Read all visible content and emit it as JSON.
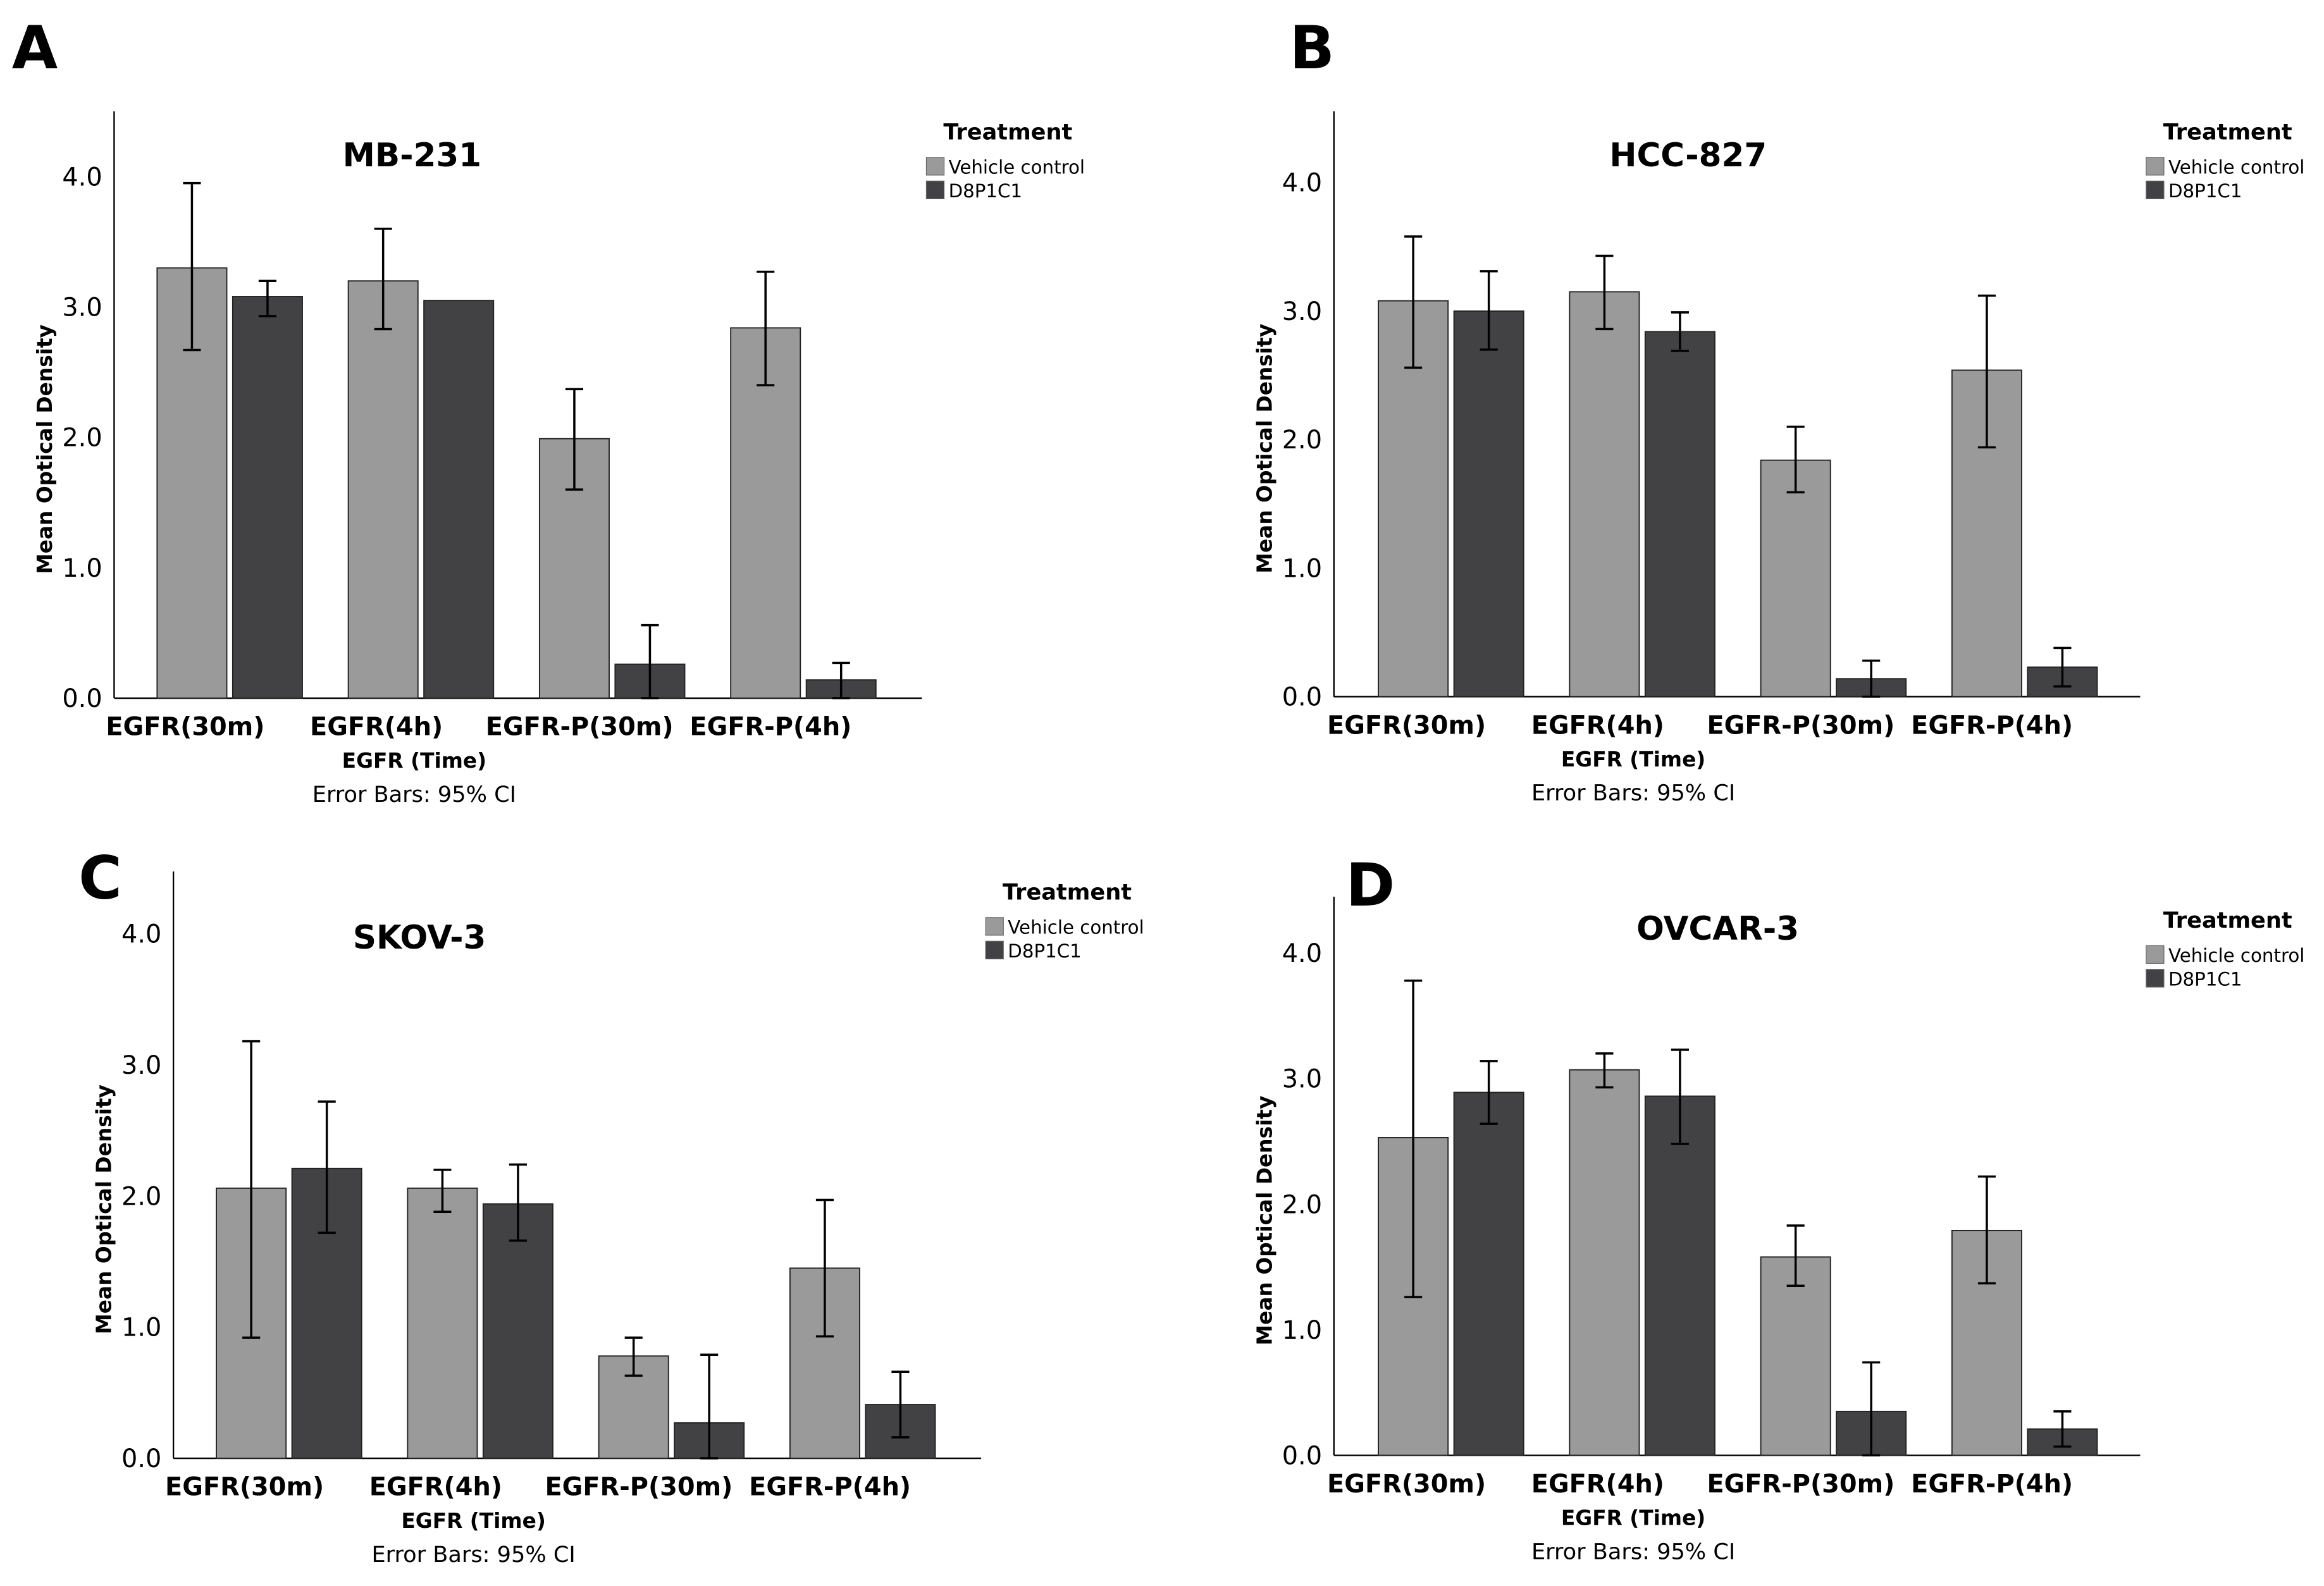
{
  "colors": {
    "vehicle": "#9a9a9a",
    "d8p1c1": "#424244",
    "axis": "#000000"
  },
  "chart_data": [
    {
      "type": "bar",
      "panel": "A",
      "title": "MB-231",
      "xlabel": "EGFR (Time)",
      "ylabel": "Mean Optical Density",
      "note": "Error Bars: 95% CI",
      "ylim": [
        0,
        4.5
      ],
      "yticks": [
        "0.0",
        "1.0",
        "2.0",
        "3.0",
        "4.0"
      ],
      "legend": {
        "title": "Treatment",
        "position": "top-right"
      },
      "categories": [
        "EGFR(30m)",
        "EGFR(4h)",
        "EGFR-P(30m)",
        "EGFR-P(4h)"
      ],
      "series": [
        {
          "name": "Vehicle control",
          "values": [
            3.3,
            3.2,
            1.99,
            2.84
          ],
          "ci_low": [
            2.67,
            2.83,
            1.6,
            2.4
          ],
          "ci_high": [
            3.95,
            3.6,
            2.37,
            3.27
          ]
        },
        {
          "name": "D8P1C1",
          "values": [
            3.08,
            3.05,
            0.26,
            0.14
          ],
          "ci_low": [
            2.93,
            3.05,
            0.0,
            0.0
          ],
          "ci_high": [
            3.2,
            3.05,
            0.56,
            0.27
          ]
        }
      ]
    },
    {
      "type": "bar",
      "panel": "B",
      "title": "HCC-827",
      "xlabel": "EGFR (Time)",
      "ylabel": "Mean Optical Density",
      "note": "Error Bars: 95% CI",
      "ylim": [
        0,
        4.5
      ],
      "yticks": [
        "0.0",
        "1.0",
        "2.0",
        "3.0",
        "4.0"
      ],
      "legend": {
        "title": "Treatment",
        "position": "top-right"
      },
      "categories": [
        "EGFR(30m)",
        "EGFR(4h)",
        "EGFR-P(30m)",
        "EGFR-P(4h)"
      ],
      "series": [
        {
          "name": "Vehicle control",
          "values": [
            3.08,
            3.15,
            1.84,
            2.54
          ],
          "ci_low": [
            2.56,
            2.86,
            1.59,
            1.94
          ],
          "ci_high": [
            3.58,
            3.43,
            2.1,
            3.12
          ]
        },
        {
          "name": "D8P1C1",
          "values": [
            3.0,
            2.84,
            0.14,
            0.23
          ],
          "ci_low": [
            2.7,
            2.69,
            0.0,
            0.08
          ],
          "ci_high": [
            3.31,
            2.99,
            0.28,
            0.38
          ]
        }
      ]
    },
    {
      "type": "bar",
      "panel": "C",
      "title": "SKOV-3",
      "xlabel": "EGFR (Time)",
      "ylabel": "Mean Optical Density",
      "note": "Error Bars: 95% CI",
      "ylim": [
        0,
        4.5
      ],
      "yticks": [
        "0.0",
        "1.0",
        "2.0",
        "3.0",
        "4.0"
      ],
      "legend": {
        "title": "Treatment",
        "position": "top-right"
      },
      "categories": [
        "EGFR(30m)",
        "EGFR(4h)",
        "EGFR-P(30m)",
        "EGFR-P(4h)"
      ],
      "series": [
        {
          "name": "Vehicle control",
          "values": [
            2.06,
            2.06,
            0.78,
            1.45
          ],
          "ci_low": [
            0.92,
            1.88,
            0.63,
            0.93
          ],
          "ci_high": [
            3.18,
            2.2,
            0.92,
            1.97
          ]
        },
        {
          "name": "D8P1C1",
          "values": [
            2.21,
            1.94,
            0.27,
            0.41
          ],
          "ci_low": [
            1.72,
            1.66,
            0.0,
            0.16
          ],
          "ci_high": [
            2.72,
            2.24,
            0.79,
            0.66
          ]
        }
      ]
    },
    {
      "type": "bar",
      "panel": "D",
      "title": "OVCAR-3",
      "xlabel": "EGFR (Time)",
      "ylabel": "Mean Optical Density",
      "note": "Error Bars: 95% CI",
      "ylim": [
        0,
        4.5
      ],
      "yticks": [
        "0.0",
        "1.0",
        "2.0",
        "3.0",
        "4.0"
      ],
      "legend": {
        "title": "Treatment",
        "position": "top-right"
      },
      "categories": [
        "EGFR(30m)",
        "EGFR(4h)",
        "EGFR-P(30m)",
        "EGFR-P(4h)"
      ],
      "series": [
        {
          "name": "Vehicle control",
          "values": [
            2.53,
            3.07,
            1.58,
            1.79
          ],
          "ci_low": [
            1.26,
            2.93,
            1.35,
            1.37
          ],
          "ci_high": [
            3.78,
            3.2,
            1.83,
            2.22
          ]
        },
        {
          "name": "D8P1C1",
          "values": [
            2.89,
            2.86,
            0.35,
            0.21
          ],
          "ci_low": [
            2.64,
            2.48,
            0.0,
            0.07
          ],
          "ci_high": [
            3.14,
            3.23,
            0.74,
            0.35
          ]
        }
      ]
    }
  ]
}
